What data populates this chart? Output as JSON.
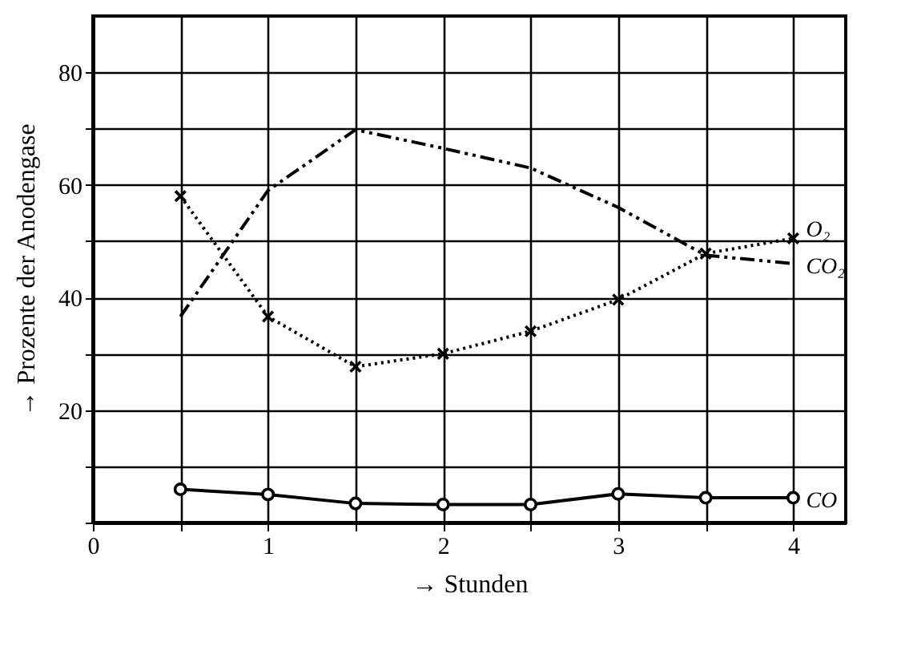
{
  "chart_data": {
    "type": "line",
    "xlabel": "→ Stunden",
    "ylabel": "→ Prozente der Anodengase",
    "x": [
      0.5,
      1,
      1.5,
      2,
      2.5,
      3,
      3.5,
      4
    ],
    "series": [
      {
        "name": "O₂",
        "color": "#000000",
        "marker": "cross",
        "line_style": "dotted",
        "values": [
          58,
          36.6,
          27.7,
          30,
          34,
          39.6,
          47.8,
          50.5
        ]
      },
      {
        "name": "CO₂",
        "color": "#000000",
        "marker": "none",
        "line_style": "dashed",
        "values": [
          36.6,
          59,
          69.8,
          66.5,
          63,
          56,
          47.5,
          46
        ]
      },
      {
        "name": "CO",
        "color": "#000000",
        "marker": "circle",
        "line_style": "solid",
        "values": [
          5.9,
          5,
          3.4,
          3.2,
          3.2,
          5.1,
          4.4,
          4.4
        ]
      }
    ],
    "xlim": [
      0,
      4.3
    ],
    "ylim": [
      0,
      90
    ],
    "xticks": [
      0,
      {
        "value": 0.5,
        "label": null
      },
      1,
      {
        "value": 1.5,
        "label": null
      },
      2,
      {
        "value": 2.5,
        "label": null
      },
      3,
      {
        "value": 3.5,
        "label": null
      },
      4
    ],
    "yticks": [
      {
        "value": 0,
        "label": null
      },
      {
        "value": 10,
        "label": null
      },
      20,
      {
        "value": 30,
        "label": null
      },
      40,
      {
        "value": 50,
        "label": null
      },
      60,
      {
        "value": 70,
        "label": null
      },
      80
    ],
    "grid": true
  }
}
